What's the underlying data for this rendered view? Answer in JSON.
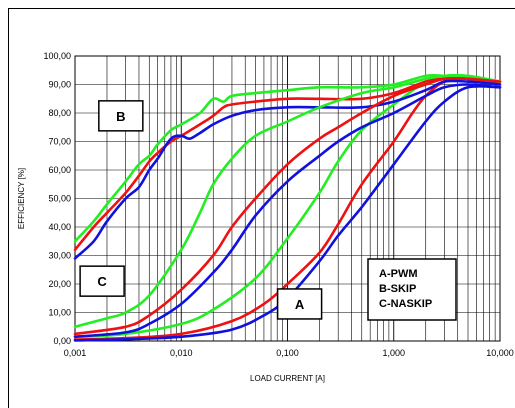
{
  "chart_data": {
    "type": "line",
    "xscale": "log",
    "xlim": [
      0.001,
      10
    ],
    "ylim": [
      0,
      100
    ],
    "xlabel": "LOAD CURRENT [A]",
    "ylabel": "EFFICIENCY [%]",
    "grid": true,
    "xticks": [
      {
        "v": 0.001,
        "label": "0,001"
      },
      {
        "v": 0.01,
        "label": "0,010"
      },
      {
        "v": 0.1,
        "label": "0,100"
      },
      {
        "v": 1,
        "label": "1,000"
      },
      {
        "v": 10,
        "label": "10,000"
      }
    ],
    "yticks": [
      {
        "v": 0,
        "label": "0,00"
      },
      {
        "v": 10,
        "label": "10,00"
      },
      {
        "v": 20,
        "label": "20,00"
      },
      {
        "v": 30,
        "label": "30,00"
      },
      {
        "v": 40,
        "label": "40,00"
      },
      {
        "v": 50,
        "label": "50,00"
      },
      {
        "v": 60,
        "label": "60,00"
      },
      {
        "v": 70,
        "label": "70,00"
      },
      {
        "v": 80,
        "label": "80,00"
      },
      {
        "v": 90,
        "label": "90,00"
      },
      {
        "v": 100,
        "label": "100,00"
      }
    ],
    "colors": {
      "green": "#22ee22",
      "red": "#ee1111",
      "blue": "#1111dd"
    },
    "series": [
      {
        "group": "A",
        "color": "green",
        "points": [
          [
            0.001,
            1.5
          ],
          [
            0.003,
            2.5
          ],
          [
            0.01,
            6
          ],
          [
            0.02,
            11
          ],
          [
            0.05,
            22
          ],
          [
            0.1,
            36
          ],
          [
            0.2,
            52
          ],
          [
            0.3,
            63
          ],
          [
            0.5,
            74
          ],
          [
            1,
            83
          ],
          [
            2,
            91
          ],
          [
            3,
            93
          ],
          [
            5,
            93
          ],
          [
            10,
            91
          ]
        ]
      },
      {
        "group": "A",
        "color": "red",
        "points": [
          [
            0.001,
            0.5
          ],
          [
            0.003,
            1
          ],
          [
            0.01,
            2.5
          ],
          [
            0.03,
            7
          ],
          [
            0.06,
            13
          ],
          [
            0.1,
            20
          ],
          [
            0.2,
            31
          ],
          [
            0.3,
            41
          ],
          [
            0.5,
            55
          ],
          [
            1,
            70
          ],
          [
            1.5,
            80
          ],
          [
            2,
            86
          ],
          [
            3,
            91
          ],
          [
            5,
            92
          ],
          [
            10,
            90
          ]
        ]
      },
      {
        "group": "A",
        "color": "blue",
        "points": [
          [
            0.001,
            0.2
          ],
          [
            0.003,
            0.6
          ],
          [
            0.01,
            1.5
          ],
          [
            0.03,
            4
          ],
          [
            0.06,
            9
          ],
          [
            0.1,
            15
          ],
          [
            0.2,
            28
          ],
          [
            0.3,
            37
          ],
          [
            0.5,
            47
          ],
          [
            1,
            62
          ],
          [
            2,
            77
          ],
          [
            3,
            84
          ],
          [
            5,
            89
          ],
          [
            10,
            89
          ]
        ]
      },
      {
        "group": "B",
        "color": "green",
        "points": [
          [
            0.001,
            35
          ],
          [
            0.0015,
            42
          ],
          [
            0.002,
            48
          ],
          [
            0.003,
            56
          ],
          [
            0.004,
            62
          ],
          [
            0.005,
            65
          ],
          [
            0.006,
            69
          ],
          [
            0.008,
            74
          ],
          [
            0.01,
            76
          ],
          [
            0.015,
            80
          ],
          [
            0.02,
            85
          ],
          [
            0.025,
            84
          ],
          [
            0.03,
            86
          ],
          [
            0.05,
            87
          ],
          [
            0.1,
            88
          ],
          [
            0.2,
            89
          ],
          [
            0.5,
            89
          ],
          [
            1,
            90
          ],
          [
            2,
            93
          ],
          [
            3,
            93
          ],
          [
            5,
            92
          ],
          [
            10,
            91
          ]
        ]
      },
      {
        "group": "B",
        "color": "red",
        "points": [
          [
            0.001,
            32
          ],
          [
            0.0015,
            40
          ],
          [
            0.002,
            45
          ],
          [
            0.003,
            52
          ],
          [
            0.004,
            58
          ],
          [
            0.005,
            63
          ],
          [
            0.006,
            66
          ],
          [
            0.008,
            70
          ],
          [
            0.01,
            72
          ],
          [
            0.015,
            76
          ],
          [
            0.02,
            79
          ],
          [
            0.025,
            82
          ],
          [
            0.03,
            83
          ],
          [
            0.05,
            84
          ],
          [
            0.1,
            85
          ],
          [
            0.2,
            85
          ],
          [
            0.5,
            85
          ],
          [
            1,
            87
          ],
          [
            2,
            91
          ],
          [
            3,
            92
          ],
          [
            5,
            92
          ],
          [
            10,
            91
          ]
        ]
      },
      {
        "group": "B",
        "color": "blue",
        "points": [
          [
            0.001,
            29
          ],
          [
            0.0015,
            35
          ],
          [
            0.002,
            42
          ],
          [
            0.003,
            50
          ],
          [
            0.004,
            54
          ],
          [
            0.005,
            60
          ],
          [
            0.006,
            64
          ],
          [
            0.008,
            71
          ],
          [
            0.01,
            72
          ],
          [
            0.012,
            71
          ],
          [
            0.015,
            73
          ],
          [
            0.02,
            76
          ],
          [
            0.03,
            79
          ],
          [
            0.05,
            81
          ],
          [
            0.1,
            82
          ],
          [
            0.2,
            82
          ],
          [
            0.5,
            82
          ],
          [
            1,
            84
          ],
          [
            2,
            88
          ],
          [
            3,
            91
          ],
          [
            5,
            91
          ],
          [
            10,
            90
          ]
        ]
      },
      {
        "group": "C",
        "color": "green",
        "points": [
          [
            0.001,
            5
          ],
          [
            0.002,
            8
          ],
          [
            0.003,
            10
          ],
          [
            0.005,
            16
          ],
          [
            0.01,
            32
          ],
          [
            0.015,
            45
          ],
          [
            0.02,
            55
          ],
          [
            0.03,
            64
          ],
          [
            0.05,
            72
          ],
          [
            0.1,
            77
          ],
          [
            0.2,
            82
          ],
          [
            0.5,
            87
          ],
          [
            1,
            89
          ],
          [
            2,
            92
          ],
          [
            3,
            93
          ],
          [
            5,
            93
          ],
          [
            10,
            91
          ]
        ]
      },
      {
        "group": "C",
        "color": "red",
        "points": [
          [
            0.001,
            2.5
          ],
          [
            0.003,
            5
          ],
          [
            0.005,
            9
          ],
          [
            0.01,
            18
          ],
          [
            0.02,
            30
          ],
          [
            0.03,
            40
          ],
          [
            0.05,
            50
          ],
          [
            0.1,
            62
          ],
          [
            0.2,
            71
          ],
          [
            0.3,
            75
          ],
          [
            0.5,
            80
          ],
          [
            1,
            86
          ],
          [
            2,
            90
          ],
          [
            3,
            92
          ],
          [
            5,
            92
          ],
          [
            10,
            91
          ]
        ]
      },
      {
        "group": "C",
        "color": "blue",
        "points": [
          [
            0.001,
            1.5
          ],
          [
            0.003,
            3
          ],
          [
            0.005,
            6
          ],
          [
            0.01,
            13
          ],
          [
            0.02,
            24
          ],
          [
            0.03,
            32
          ],
          [
            0.05,
            44
          ],
          [
            0.1,
            56
          ],
          [
            0.2,
            65
          ],
          [
            0.3,
            70
          ],
          [
            0.5,
            75
          ],
          [
            1,
            80
          ],
          [
            2,
            86
          ],
          [
            3,
            89
          ],
          [
            5,
            90
          ],
          [
            10,
            89
          ]
        ]
      }
    ],
    "annotations": [
      {
        "label": "B",
        "cx": 0.0027,
        "cy": 79
      },
      {
        "label": "C",
        "cx": 0.0018,
        "cy": 21
      },
      {
        "label": "A",
        "cx": 0.13,
        "cy": 13
      }
    ],
    "legend": {
      "lines": [
        "A-PWM",
        "B-SKIP",
        "C-NASKIP"
      ]
    }
  }
}
